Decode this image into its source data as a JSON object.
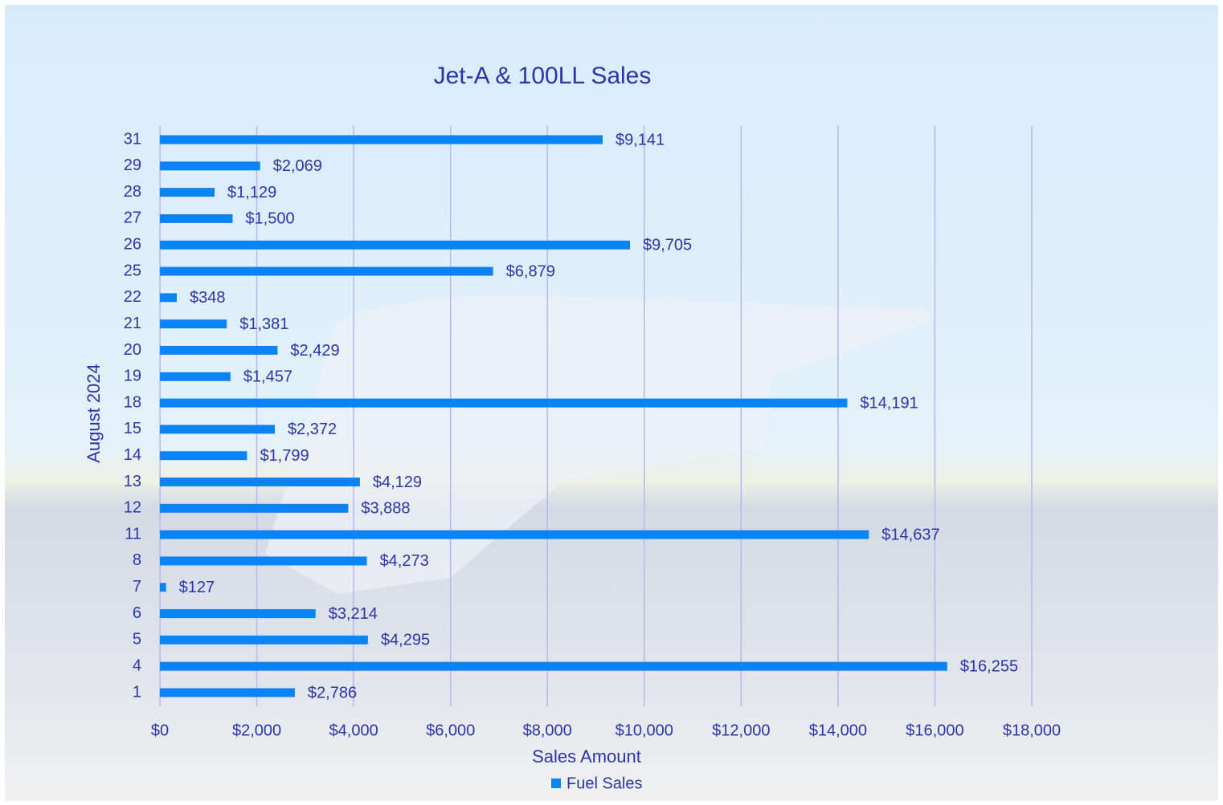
{
  "chart_data": {
    "type": "bar",
    "orientation": "horizontal",
    "title": "Jet-A & 100LL Sales",
    "x_label": "Sales Amount",
    "y_label": "August 2024",
    "categories": [
      "1",
      "4",
      "5",
      "6",
      "7",
      "8",
      "11",
      "12",
      "13",
      "14",
      "15",
      "18",
      "19",
      "20",
      "21",
      "22",
      "25",
      "26",
      "27",
      "28",
      "29",
      "31"
    ],
    "series": [
      {
        "name": "Fuel Sales",
        "color": "#0a84f5",
        "values": [
          2786,
          16255,
          4295,
          3214,
          127,
          4273,
          14637,
          3888,
          4129,
          1799,
          2372,
          14191,
          1457,
          2429,
          1381,
          348,
          6879,
          9705,
          1500,
          1129,
          2069,
          9141
        ],
        "value_labels": [
          "$2,786",
          "$16,255",
          "$4,295",
          "$3,214",
          "$127",
          "$4,273",
          "$14,637",
          "$3,888",
          "$4,129",
          "$1,799",
          "$2,372",
          "$14,191",
          "$1,457",
          "$2,429",
          "$1,381",
          "$348",
          "$6,879",
          "$9,705",
          "$1,500",
          "$1,129",
          "$2,069",
          "$9,141"
        ]
      }
    ],
    "xlim": [
      0,
      18000
    ],
    "xticks": [
      {
        "value": 0,
        "label": "$0"
      },
      {
        "value": 2000,
        "label": "$2,000"
      },
      {
        "value": 4000,
        "label": "$4,000"
      },
      {
        "value": 6000,
        "label": "$6,000"
      },
      {
        "value": 8000,
        "label": "$8,000"
      },
      {
        "value": 10000,
        "label": "$10,000"
      },
      {
        "value": 12000,
        "label": "$12,000"
      },
      {
        "value": 14000,
        "label": "$14,000"
      },
      {
        "value": 16000,
        "label": "$16,000"
      },
      {
        "value": 18000,
        "label": "$18,000"
      }
    ],
    "grid": true,
    "legend": "bottom"
  }
}
